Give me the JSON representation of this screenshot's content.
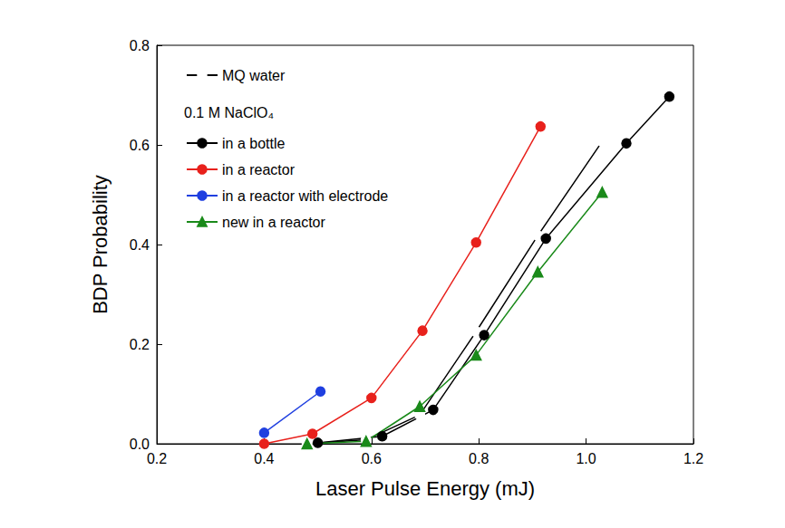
{
  "chart_data": {
    "type": "line",
    "x_label": "Laser Pulse Energy (mJ)",
    "y_label": "BDP Probability",
    "annotations": [
      "0.1 M NaClO₄"
    ],
    "xlim": [
      0.2,
      1.2
    ],
    "xticks": [
      0.2,
      0.4,
      0.6,
      0.8,
      {
        "value": 1.0,
        "label": "1.0"
      },
      1.2
    ],
    "ylim": [
      0,
      0.8
    ],
    "yticks": [
      {
        "value": 0,
        "label": "0.0"
      },
      0.2,
      0.4,
      0.6,
      0.8
    ],
    "grid": false,
    "legend": "upper left",
    "series": [
      {
        "name": "MQ water",
        "color": "#000000",
        "marker": "open circle",
        "x": [
          0.48,
          0.59,
          0.69,
          0.795,
          0.91,
          1.03
        ],
        "values": [
          0.0,
          0.008,
          0.058,
          0.225,
          0.418,
          0.607
        ]
      },
      {
        "name": "in a bottle",
        "color": "#000000",
        "marker": "circle",
        "x": [
          0.5,
          0.62,
          0.715,
          0.81,
          0.925,
          1.075,
          1.155
        ],
        "values": [
          0.002,
          0.015,
          0.068,
          0.218,
          0.412,
          0.603,
          0.697
        ]
      },
      {
        "name": "in a reactor",
        "color": "#e8211c",
        "marker": "circle",
        "x": [
          0.4,
          0.49,
          0.6,
          0.695,
          0.795,
          0.915
        ],
        "values": [
          0.0,
          0.02,
          0.092,
          0.227,
          0.404,
          0.637
        ]
      },
      {
        "name": "in a reactor with electrode",
        "color": "#1f3fe0",
        "marker": "circle",
        "x": [
          0.4,
          0.505
        ],
        "values": [
          0.022,
          0.105
        ]
      },
      {
        "name": "new in a reactor",
        "color": "#1a8a1a",
        "marker": "triangle",
        "x": [
          0.48,
          0.59,
          0.69,
          0.795,
          0.91,
          1.03
        ],
        "values": [
          0.0,
          0.005,
          0.075,
          0.178,
          0.345,
          0.505
        ]
      }
    ]
  }
}
